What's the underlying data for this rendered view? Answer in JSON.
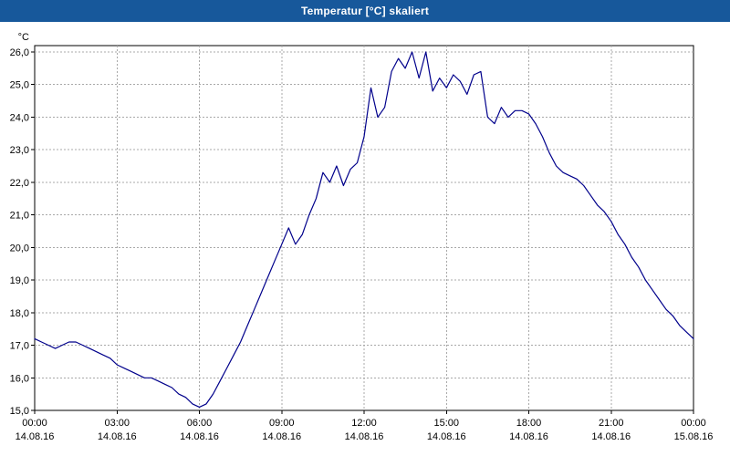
{
  "window": {
    "title": "Temperatur [°C] skaliert"
  },
  "colors": {
    "titlebar": "#17589B",
    "title_text": "#FFFFFF",
    "line": "#00008B",
    "grid": "#A8A8A8",
    "axis": "#000000",
    "background": "#FFFFFF"
  },
  "chart_data": {
    "type": "line",
    "title": "Temperatur [°C] skaliert",
    "xlabel": "",
    "ylabel": "°C",
    "ylim": [
      15.0,
      26.0
    ],
    "ytick_step": 1.0,
    "ytick_labels": [
      "15,0",
      "16,0",
      "17,0",
      "18,0",
      "19,0",
      "20,0",
      "21,0",
      "22,0",
      "23,0",
      "24,0",
      "25,0",
      "26,0"
    ],
    "x_range_hours": [
      0,
      24
    ],
    "x_start_hour": 0,
    "x_step_hours": 0.25,
    "grid": "dashed",
    "legend_position": "none",
    "xticks": [
      {
        "time": "00:00",
        "date": "14.08.16"
      },
      {
        "time": "03:00",
        "date": "14.08.16"
      },
      {
        "time": "06:00",
        "date": "14.08.16"
      },
      {
        "time": "09:00",
        "date": "14.08.16"
      },
      {
        "time": "12:00",
        "date": "14.08.16"
      },
      {
        "time": "15:00",
        "date": "14.08.16"
      },
      {
        "time": "18:00",
        "date": "14.08.16"
      },
      {
        "time": "21:00",
        "date": "14.08.16"
      },
      {
        "time": "00:00",
        "date": "15.08.16"
      }
    ],
    "series": [
      {
        "name": "Temperatur [°C]",
        "color": "#00008B",
        "values": [
          17.2,
          17.1,
          17.0,
          16.9,
          17.0,
          17.1,
          17.1,
          17.0,
          16.9,
          16.8,
          16.7,
          16.6,
          16.4,
          16.3,
          16.2,
          16.1,
          16.0,
          16.0,
          15.9,
          15.8,
          15.7,
          15.5,
          15.4,
          15.2,
          15.1,
          15.2,
          15.5,
          15.9,
          16.3,
          16.7,
          17.1,
          17.6,
          18.1,
          18.6,
          19.1,
          19.6,
          20.1,
          20.6,
          20.1,
          20.4,
          21.0,
          21.5,
          22.3,
          22.0,
          22.5,
          21.9,
          22.4,
          22.6,
          23.4,
          24.9,
          24.0,
          24.3,
          25.4,
          25.8,
          25.5,
          26.0,
          25.2,
          26.0,
          24.8,
          25.2,
          24.9,
          25.3,
          25.1,
          24.7,
          25.3,
          25.4,
          24.0,
          23.8,
          24.3,
          24.0,
          24.2,
          24.2,
          24.1,
          23.8,
          23.4,
          22.9,
          22.5,
          22.3,
          22.2,
          22.1,
          21.9,
          21.6,
          21.3,
          21.1,
          20.8,
          20.4,
          20.1,
          19.7,
          19.4,
          19.0,
          18.7,
          18.4,
          18.1,
          17.9,
          17.6,
          17.4,
          17.2
        ]
      }
    ]
  }
}
